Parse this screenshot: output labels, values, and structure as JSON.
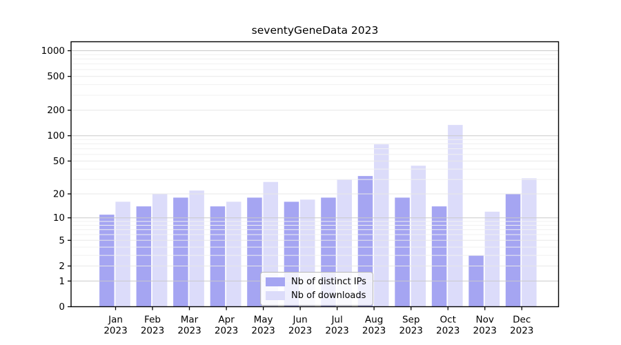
{
  "title": "seventyGeneData 2023",
  "chart_data": {
    "type": "bar",
    "title": "seventyGeneData 2023",
    "xlabel": "",
    "ylabel": "",
    "yscale": "symlog ln(1+x)",
    "grid": true,
    "legend_position": "lower center",
    "year_line": "2023",
    "categories": [
      "Jan",
      "Feb",
      "Mar",
      "Apr",
      "May",
      "Jun",
      "Jul",
      "Aug",
      "Sep",
      "Oct",
      "Nov",
      "Dec"
    ],
    "yticks": [
      0,
      1,
      2,
      5,
      10,
      20,
      50,
      100,
      200,
      500,
      1000
    ],
    "minor_grid_values": [
      3,
      4,
      6,
      7,
      8,
      9,
      30,
      40,
      60,
      70,
      80,
      90,
      300,
      400,
      600,
      700,
      800,
      900
    ],
    "ylim": [
      0,
      1270
    ],
    "series": [
      {
        "name": "Nb of distinct IPs",
        "color": "#a5a5f2",
        "values": [
          11,
          14,
          18,
          14,
          18,
          16,
          18,
          33,
          18,
          14,
          3,
          20
        ]
      },
      {
        "name": "Nb of downloads",
        "color": "#dcdcfa",
        "values": [
          16,
          20,
          22,
          16,
          28,
          17,
          30,
          79,
          44,
          134,
          12,
          31
        ]
      }
    ],
    "colors": {
      "decade_grid": "#c9c9c9",
      "labeled_grid": "#e7e7e7",
      "minor_grid": "#f0f0f0",
      "axis": "#000000"
    }
  }
}
